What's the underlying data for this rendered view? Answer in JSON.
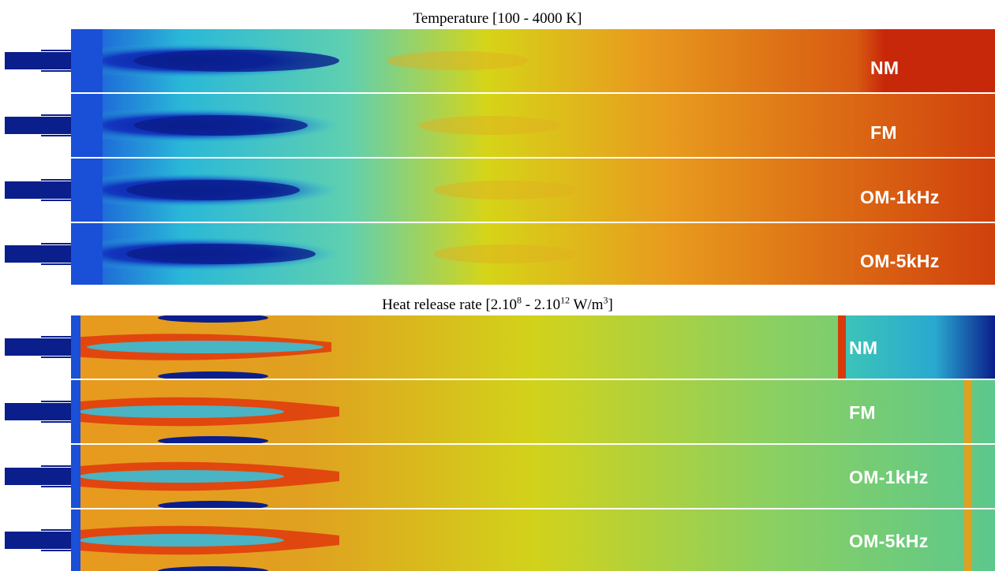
{
  "panels": [
    {
      "quantity": "temperature",
      "title": "Temperature [100 - 4000 K]",
      "rows": [
        "NM",
        "FM",
        "OM-1kHz",
        "OM-5kHz"
      ]
    },
    {
      "quantity": "heat-release-rate",
      "title_main": "Heat release rate [2.10",
      "title_exp1": "8",
      "title_mid": " - 2.10",
      "title_exp2": "12",
      "title_unit": " W/m",
      "title_exp3": "3",
      "title_end": "]",
      "rows": [
        "NM",
        "FM",
        "OM-1kHz",
        "OM-5kHz"
      ]
    }
  ],
  "colors": {
    "cold": "#0a1e8c",
    "cyan": "#27c6d8",
    "yellow": "#d8d21a",
    "orange": "#e08a1a",
    "hot": "#c82a0a",
    "divider": "#ffffff"
  }
}
